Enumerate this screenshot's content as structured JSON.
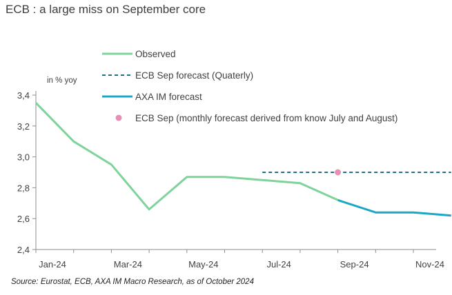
{
  "title": "ECB : a large miss on September core",
  "source": "Source: Eurostat, ECB, AXA IM Macro Research, as of October 2024",
  "chart_data": {
    "type": "line",
    "ylabel": "in % yoy",
    "ylim": [
      2.4,
      3.4
    ],
    "yticks": [
      "2,4",
      "2,6",
      "2,8",
      "3,0",
      "3,2",
      "3,4"
    ],
    "xlim": [
      0,
      10.5
    ],
    "xticks": [
      {
        "label": "Jan-24",
        "x": 0
      },
      {
        "label": "Mar-24",
        "x": 2
      },
      {
        "label": "May-24",
        "x": 4
      },
      {
        "label": "Jul-24",
        "x": 6
      },
      {
        "label": "Sep-24",
        "x": 8
      },
      {
        "label": "Nov-24",
        "x": 10
      }
    ],
    "grid": false,
    "legend_position": "top-right",
    "series": [
      {
        "name": "Observed",
        "style": "solid",
        "color": "#7ed39a",
        "x": [
          0,
          1,
          2,
          3,
          4,
          5,
          6,
          7,
          8
        ],
        "values": [
          3.35,
          3.1,
          2.95,
          2.66,
          2.87,
          2.87,
          2.85,
          2.83,
          2.72
        ]
      },
      {
        "name": "ECB Sep forecast (Quaterly)",
        "style": "dashed",
        "color": "#1f6f86",
        "x": [
          6,
          11
        ],
        "values": [
          2.9,
          2.9
        ]
      },
      {
        "name": "AXA IM forecast",
        "style": "solid",
        "color": "#1aa7c7",
        "x": [
          8,
          9,
          10,
          11
        ],
        "values": [
          2.72,
          2.64,
          2.64,
          2.62
        ]
      },
      {
        "name": "ECB Sep (monthly forecast derived from know July and August)",
        "style": "marker",
        "color": "#e890b4",
        "x": [
          8
        ],
        "values": [
          2.9
        ]
      }
    ]
  }
}
